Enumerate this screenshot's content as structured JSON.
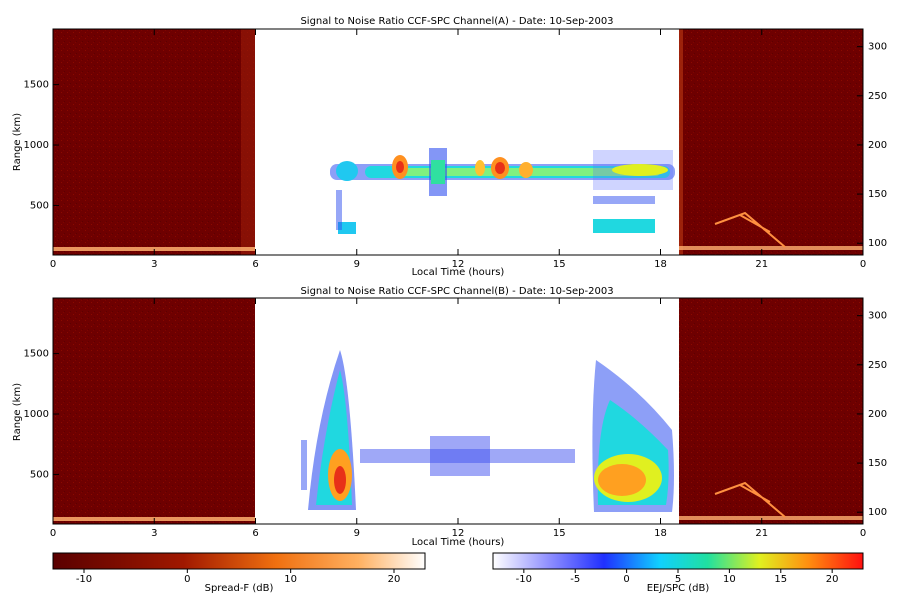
{
  "chart_data": [
    {
      "type": "heatmap",
      "title": "Signal to Noise Ratio CCF-SPC Channel(A) - Date: 10-Sep-2003",
      "xlabel": "Local Time (hours)",
      "ylabel": "Range (km)",
      "xlim": [
        0,
        24
      ],
      "xticks": [
        "0",
        "3",
        "6",
        "9",
        "12",
        "15",
        "18",
        "21",
        "0"
      ],
      "ylim": [
        90,
        1960
      ],
      "yticks": [
        500,
        1000,
        1500
      ],
      "y2lim": [
        88,
        318
      ],
      "y2ticks": [
        100,
        150,
        200,
        250,
        300
      ],
      "spread_f_intervals_hours": [
        [
          0,
          6
        ],
        [
          18.5,
          24
        ]
      ],
      "features": [
        {
          "name": "EEJ echo band",
          "x_start": 8.0,
          "x_end": 18.1,
          "range_km": 780,
          "peak_db": 16
        },
        {
          "name": "Low layer",
          "x_start": 8.3,
          "x_end": 9.0,
          "range_km": 300,
          "peak_db": 6
        },
        {
          "name": "Low layer",
          "x_start": 16.0,
          "x_end": 17.8,
          "range_km": 300,
          "peak_db": 6
        },
        {
          "name": "Spread-F trace",
          "x_start": 19.5,
          "x_end": 24,
          "range_km": 350,
          "peak_db": 20
        }
      ]
    },
    {
      "type": "heatmap",
      "title": "Signal to Noise Ratio CCF-SPC Channel(B) - Date: 10-Sep-2003",
      "xlabel": "Local Time (hours)",
      "ylabel": "Range (km)",
      "xlim": [
        0,
        24
      ],
      "xticks": [
        "0",
        "3",
        "6",
        "9",
        "12",
        "15",
        "18",
        "21",
        "0"
      ],
      "ylim": [
        90,
        1960
      ],
      "yticks": [
        500,
        1000,
        1500
      ],
      "y2lim": [
        88,
        318
      ],
      "y2ticks": [
        100,
        150,
        200,
        250,
        300
      ],
      "spread_f_intervals_hours": [
        [
          0,
          6
        ],
        [
          18.5,
          24
        ]
      ],
      "features": [
        {
          "name": "Morning plume",
          "x_start": 7.6,
          "x_end": 9.0,
          "range_top_km": 1550,
          "peak_db": 16
        },
        {
          "name": "Midday band",
          "x_start": 9.5,
          "x_end": 15.4,
          "range_km": 620,
          "peak_db": 0
        },
        {
          "name": "Evening plume",
          "x_start": 16.0,
          "x_end": 18.5,
          "range_top_km": 1450,
          "peak_db": 18
        },
        {
          "name": "Spread-F trace",
          "x_start": 19.5,
          "x_end": 24,
          "range_km": 350,
          "peak_db": 20
        }
      ]
    }
  ],
  "colorbars": {
    "spread_f": {
      "label": "Spread-F (dB)",
      "ticks": [
        "-10",
        "0",
        "10",
        "20"
      ],
      "range": [
        -13,
        23
      ]
    },
    "eej": {
      "label": "EEJ/SPC (dB)",
      "ticks": [
        "-10",
        "-5",
        "0",
        "5",
        "10",
        "15",
        "20"
      ],
      "range": [
        -13,
        23
      ]
    }
  },
  "colors": {
    "spread_bg": "#6e0000",
    "echo_peak": "#e8401e",
    "echo_mid": "#2ee8c8",
    "echo_low": "#3a54e8"
  }
}
